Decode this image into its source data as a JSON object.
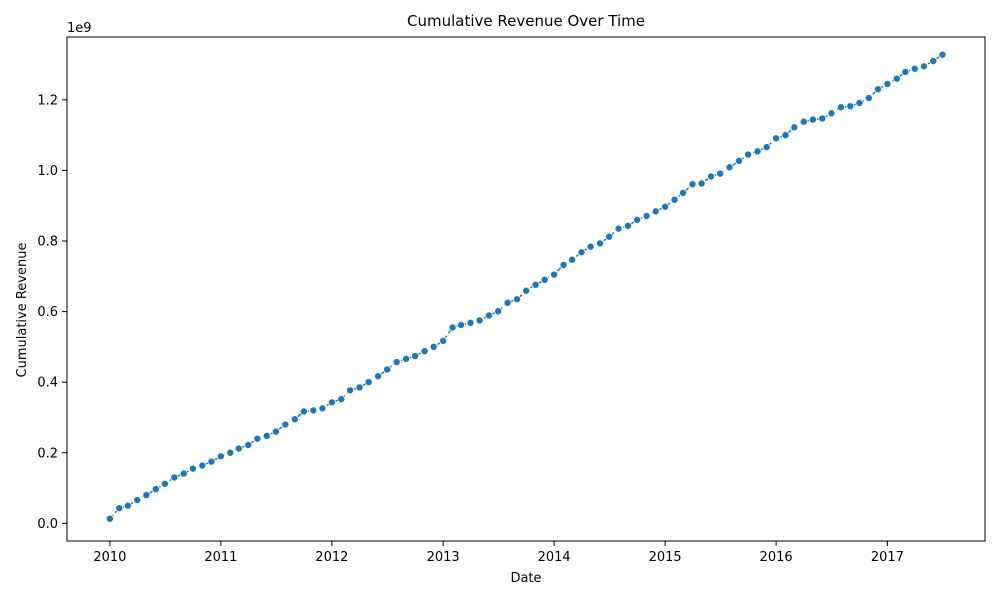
{
  "chart_data": {
    "type": "line",
    "title": "Cumulative Revenue Over Time",
    "xlabel": "Date",
    "ylabel": "Cumulative Revenue",
    "y_multiplier": "1e9",
    "xlim": [
      "2009-08-13",
      "2017-11-18"
    ],
    "ylim": [
      -0.05,
      1.378
    ],
    "x_ticks": [
      {
        "value": "2010-01-01",
        "label": "2010"
      },
      {
        "value": "2011-01-01",
        "label": "2011"
      },
      {
        "value": "2012-01-01",
        "label": "2012"
      },
      {
        "value": "2013-01-01",
        "label": "2013"
      },
      {
        "value": "2014-01-01",
        "label": "2014"
      },
      {
        "value": "2015-01-01",
        "label": "2015"
      },
      {
        "value": "2016-01-01",
        "label": "2016"
      },
      {
        "value": "2017-01-01",
        "label": "2017"
      }
    ],
    "y_ticks": [
      {
        "value": 0.0,
        "label": "0.0"
      },
      {
        "value": 0.2,
        "label": "0.2"
      },
      {
        "value": 0.4,
        "label": "0.4"
      },
      {
        "value": 0.6,
        "label": "0.6"
      },
      {
        "value": 0.8,
        "label": "0.8"
      },
      {
        "value": 1.0,
        "label": "1.0"
      },
      {
        "value": 1.2,
        "label": "1.2"
      }
    ],
    "grid": false,
    "legend": "none",
    "series": [
      {
        "color": "#1f77b4",
        "marker": "circle",
        "linestyle": "dashed",
        "x": [
          "2010-01-01",
          "2010-02-01",
          "2010-03-01",
          "2010-04-01",
          "2010-05-01",
          "2010-06-01",
          "2010-07-01",
          "2010-08-01",
          "2010-09-01",
          "2010-10-01",
          "2010-11-01",
          "2010-12-01",
          "2011-01-01",
          "2011-02-01",
          "2011-03-01",
          "2011-04-01",
          "2011-05-01",
          "2011-06-01",
          "2011-07-01",
          "2011-08-01",
          "2011-09-01",
          "2011-10-01",
          "2011-11-01",
          "2011-12-01",
          "2012-01-01",
          "2012-02-01",
          "2012-03-01",
          "2012-04-01",
          "2012-05-01",
          "2012-06-01",
          "2012-07-01",
          "2012-08-01",
          "2012-09-01",
          "2012-10-01",
          "2012-11-01",
          "2012-12-01",
          "2013-01-01",
          "2013-02-01",
          "2013-03-01",
          "2013-04-01",
          "2013-05-01",
          "2013-06-01",
          "2013-07-01",
          "2013-08-01",
          "2013-09-01",
          "2013-10-01",
          "2013-11-01",
          "2013-12-01",
          "2014-01-01",
          "2014-02-01",
          "2014-03-01",
          "2014-04-01",
          "2014-05-01",
          "2014-06-01",
          "2014-07-01",
          "2014-08-01",
          "2014-09-01",
          "2014-10-01",
          "2014-11-01",
          "2014-12-01",
          "2015-01-01",
          "2015-02-01",
          "2015-03-01",
          "2015-04-01",
          "2015-05-01",
          "2015-06-01",
          "2015-07-01",
          "2015-08-01",
          "2015-09-01",
          "2015-10-01",
          "2015-11-01",
          "2015-12-01",
          "2016-01-01",
          "2016-02-01",
          "2016-03-01",
          "2016-04-01",
          "2016-05-01",
          "2016-06-01",
          "2016-07-01",
          "2016-08-01",
          "2016-09-01",
          "2016-10-01",
          "2016-11-01",
          "2016-12-01",
          "2017-01-01",
          "2017-02-01",
          "2017-03-01",
          "2017-04-01",
          "2017-05-01",
          "2017-06-01",
          "2017-07-01"
        ],
        "y": [
          0.013,
          0.043,
          0.05,
          0.066,
          0.08,
          0.097,
          0.112,
          0.13,
          0.141,
          0.155,
          0.164,
          0.175,
          0.19,
          0.2,
          0.212,
          0.222,
          0.24,
          0.248,
          0.26,
          0.28,
          0.295,
          0.317,
          0.32,
          0.326,
          0.343,
          0.352,
          0.377,
          0.385,
          0.4,
          0.417,
          0.436,
          0.457,
          0.466,
          0.474,
          0.488,
          0.5,
          0.517,
          0.555,
          0.562,
          0.568,
          0.575,
          0.589,
          0.601,
          0.625,
          0.635,
          0.659,
          0.676,
          0.69,
          0.705,
          0.732,
          0.747,
          0.768,
          0.784,
          0.793,
          0.812,
          0.835,
          0.843,
          0.86,
          0.871,
          0.884,
          0.897,
          0.917,
          0.936,
          0.961,
          0.963,
          0.983,
          0.991,
          1.009,
          1.027,
          1.045,
          1.054,
          1.066,
          1.091,
          1.1,
          1.122,
          1.138,
          1.144,
          1.147,
          1.162,
          1.179,
          1.182,
          1.191,
          1.205,
          1.23,
          1.245,
          1.26,
          1.279,
          1.288,
          1.295,
          1.31,
          1.328
        ]
      }
    ]
  }
}
